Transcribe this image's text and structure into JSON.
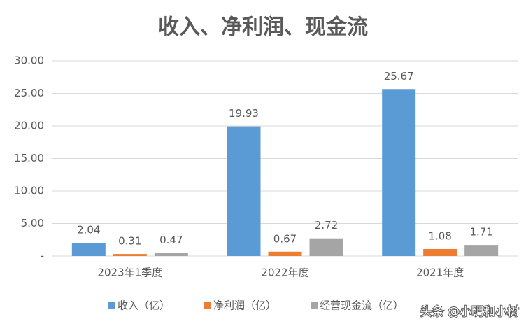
{
  "chart_data": {
    "type": "bar",
    "title": "收入、净利润、现金流",
    "categories": [
      "2023年1季度",
      "2022年度",
      "2021年度"
    ],
    "series": [
      {
        "name": "收入（亿）",
        "color": "#5b9bd5",
        "values": [
          2.04,
          19.93,
          25.67
        ]
      },
      {
        "name": "净利润（亿）",
        "color": "#ed7d31",
        "values": [
          0.31,
          0.67,
          1.08
        ]
      },
      {
        "name": "经营现金流（亿）",
        "color": "#a5a5a5",
        "values": [
          0.47,
          2.72,
          1.71
        ]
      }
    ],
    "ylim": [
      0,
      30
    ],
    "yticks": [
      {
        "value": 0,
        "label": "-"
      },
      {
        "value": 5,
        "label": "5.00"
      },
      {
        "value": 10,
        "label": "10.00"
      },
      {
        "value": 15,
        "label": "15.00"
      },
      {
        "value": 20,
        "label": "20.00"
      },
      {
        "value": 25,
        "label": "25.00"
      },
      {
        "value": 30,
        "label": "30.00"
      }
    ],
    "grid": true,
    "legend": "bottom",
    "watermark": "头条 @小明和小树"
  }
}
